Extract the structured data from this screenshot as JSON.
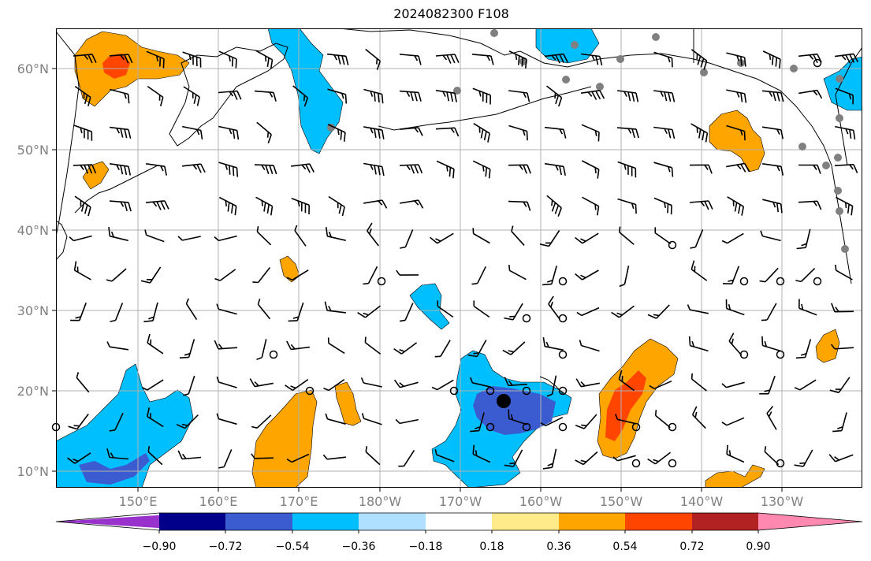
{
  "title": "2024082300 F108",
  "lat_labels": [
    "60°N",
    "50°N",
    "40°N",
    "30°N",
    "20°N",
    "10°N"
  ],
  "lon_labels": [
    "150°E",
    "160°E",
    "170°E",
    "180°W",
    "170°W",
    "160°W",
    "150°W",
    "140°W",
    "130°W"
  ],
  "colorbar": {
    "colors": [
      "#9932cc",
      "#00008b",
      "#3b5bd0",
      "#00bfff",
      "#b0e0ff",
      "#ffffff",
      "#ffeb8a",
      "#ffa500",
      "#ff4500",
      "#b22222",
      "#ff88b0"
    ],
    "labels": [
      "−0.90",
      "−0.72",
      "−0.54",
      "−0.36",
      "−0.18",
      "0.18",
      "0.36",
      "0.54",
      "0.72",
      "0.90"
    ]
  }
}
